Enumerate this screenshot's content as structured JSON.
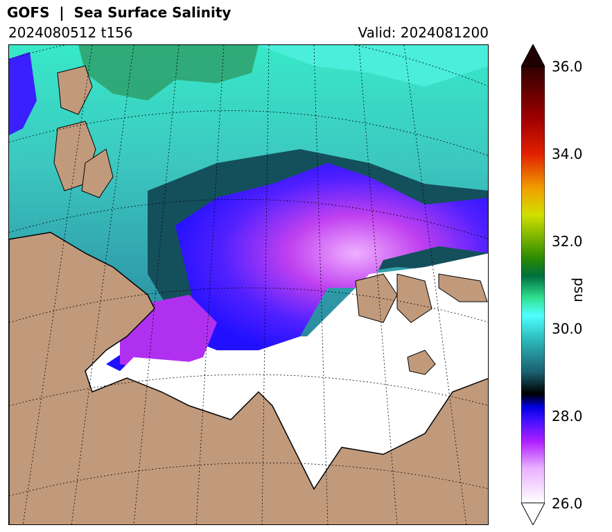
{
  "title": "GOFS  |  Sea Surface Salinity",
  "run_label": "2024080512 t156",
  "valid_label": "Valid: 2024081200",
  "colorbar": {
    "label": "psu",
    "min": 26.0,
    "max": 36.0,
    "ticks": [
      "36.0",
      "34.0",
      "32.0",
      "30.0",
      "28.0",
      "26.0"
    ],
    "extend": "both"
  },
  "colors": {
    "land": "#c19a7c",
    "ice_no_data": "#ffffff",
    "fresh": "#a020f0",
    "mid": "#1a4a5a",
    "saline": "#40e0d0",
    "high": "#2e8b57"
  }
}
